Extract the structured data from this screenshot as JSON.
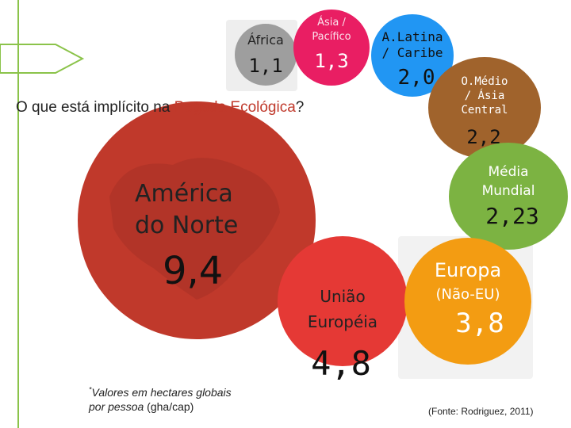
{
  "title": {
    "prefix": "O que está implícito na ",
    "highlight": "Pegada Ecológica",
    "suffix": "?"
  },
  "colors": {
    "accent_green": "#8BC34A",
    "title_red": "#C0392B",
    "north_america": "#C0392B",
    "africa": "#9E9E9E",
    "asia_pacific": "#E91E63",
    "latin_america": "#2196F3",
    "middle_east": "#A0632C",
    "world": "#7CB342",
    "european_union": "#E53935",
    "europe": "#F39C12"
  },
  "regions": {
    "africa": {
      "name": "África",
      "value": "1,1"
    },
    "asia_pacific": {
      "name_line1": "Ásia /",
      "name_line2": "Pacífico",
      "value": "1,3"
    },
    "latin_america": {
      "name_line1": "A.Latina",
      "name_line2": "/ Caribe",
      "value": "2,0"
    },
    "middle_east": {
      "name_line1": "O.Médio",
      "name_line2": "/ Ásia",
      "name_line3": "Central",
      "value": "2,2"
    },
    "world": {
      "name_line1": "Média",
      "name_line2": "Mundial",
      "value": "2,23"
    },
    "north_america": {
      "name_line1": "América",
      "name_line2": "do Norte",
      "value": "9,4"
    },
    "european_union": {
      "name_line1": "União",
      "name_line2": "Européia",
      "value": "4,8"
    },
    "europe": {
      "name_line1": "Europa",
      "name_line2": "(Não-EU)",
      "value": "3,8"
    }
  },
  "footnote": {
    "mark": "*",
    "line1": "Valores em hectares globais",
    "line2_italic": "por pessoa",
    "line2_unit": " (gha/cap)"
  },
  "source": "(Fonte: Rodriguez, 2011)"
}
